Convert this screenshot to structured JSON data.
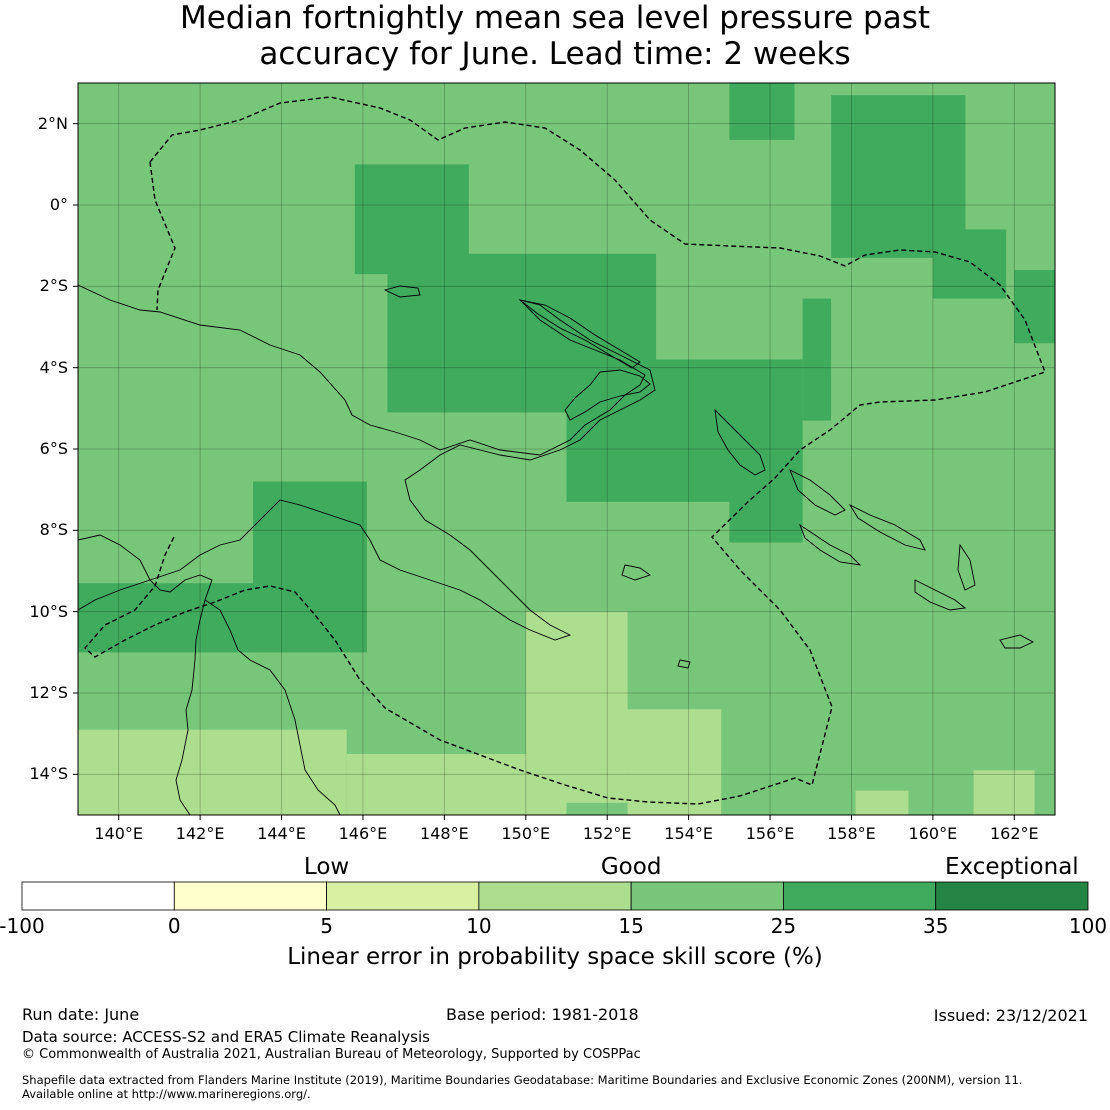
{
  "title": {
    "line1": "Median fortnightly mean sea level pressure past",
    "line2": "accuracy for June. Lead time: 2 weeks"
  },
  "map": {
    "lon_range": [
      139,
      163
    ],
    "lat_range": [
      -15,
      3
    ],
    "lat_labels": [
      "2°N",
      "0°",
      "2°S",
      "4°S",
      "6°S",
      "8°S",
      "10°S",
      "12°S",
      "14°S"
    ],
    "lat_values": [
      2,
      0,
      -2,
      -4,
      -6,
      -8,
      -10,
      -12,
      -14
    ],
    "lon_labels": [
      "140°E",
      "142°E",
      "144°E",
      "146°E",
      "148°E",
      "150°E",
      "152°E",
      "154°E",
      "156°E",
      "158°E",
      "160°E",
      "162°E"
    ],
    "lon_values": [
      140,
      142,
      144,
      146,
      148,
      150,
      152,
      154,
      156,
      158,
      160,
      162
    ],
    "grid": "on",
    "default_category": 4,
    "regions": [
      {
        "category": 5,
        "lon": [
          145.8,
          148.6
        ],
        "lat": [
          -1.7,
          1.0
        ]
      },
      {
        "category": 5,
        "lon": [
          146.6,
          153.2
        ],
        "lat": [
          -5.1,
          -1.2
        ]
      },
      {
        "category": 5,
        "lon": [
          151.0,
          156.8
        ],
        "lat": [
          -7.3,
          -3.8
        ]
      },
      {
        "category": 5,
        "lon": [
          155.0,
          156.8
        ],
        "lat": [
          -8.3,
          -6.0
        ]
      },
      {
        "category": 5,
        "lon": [
          156.8,
          157.5
        ],
        "lat": [
          -5.3,
          -2.3
        ]
      },
      {
        "category": 5,
        "lon": [
          157.5,
          160.8
        ],
        "lat": [
          -1.3,
          2.7
        ]
      },
      {
        "category": 5,
        "lon": [
          160.0,
          161.8
        ],
        "lat": [
          -2.3,
          -0.6
        ]
      },
      {
        "category": 5,
        "lon": [
          162.0,
          163.0
        ],
        "lat": [
          -3.4,
          -1.6
        ]
      },
      {
        "category": 5,
        "lon": [
          155.0,
          156.6
        ],
        "lat": [
          1.6,
          3.0
        ]
      },
      {
        "category": 5,
        "lon": [
          139.0,
          144.0
        ],
        "lat": [
          -11.0,
          -9.3
        ]
      },
      {
        "category": 5,
        "lon": [
          143.3,
          146.1
        ],
        "lat": [
          -11.0,
          -6.8
        ]
      },
      {
        "category": 3,
        "lon": [
          139.0,
          145.6
        ],
        "lat": [
          -15.0,
          -12.9
        ]
      },
      {
        "category": 3,
        "lon": [
          145.6,
          151.0
        ],
        "lat": [
          -15.0,
          -13.5
        ]
      },
      {
        "category": 3,
        "lon": [
          150.0,
          152.5
        ],
        "lat": [
          -14.7,
          -10.0
        ]
      },
      {
        "category": 3,
        "lon": [
          152.5,
          154.8
        ],
        "lat": [
          -15.0,
          -12.4
        ]
      },
      {
        "category": 3,
        "lon": [
          158.1,
          159.4
        ],
        "lat": [
          -15.0,
          -14.4
        ]
      },
      {
        "category": 3,
        "lon": [
          161.0,
          162.5
        ],
        "lat": [
          -15.0,
          -13.9
        ]
      }
    ]
  },
  "colorbar": {
    "categories": [
      {
        "label": "Low",
        "from_tick": 1,
        "to_tick": 3
      },
      {
        "label": "Good",
        "from_tick": 3,
        "to_tick": 5
      },
      {
        "label": "Exceptional",
        "from_tick": 6,
        "to_tick": 7
      }
    ],
    "ticks": [
      "-100",
      "0",
      "5",
      "10",
      "15",
      "25",
      "35",
      "100"
    ],
    "colors": [
      "#ffffff",
      "#ffffcc",
      "#d9f0a3",
      "#addd8e",
      "#78c679",
      "#41ab5d",
      "#238443"
    ],
    "title": "Linear error in probability space skill score (%)"
  },
  "footer": {
    "run_date": "Run date: June",
    "base_period": "Base period: 1981-2018",
    "issued": "Issued: 23/12/2021",
    "data_source": "Data source: ACCESS-S2 and ERA5 Climate Reanalysis",
    "copyright": "© Commonwealth of Australia 2021, Australian Bureau of Meteorology, Supported by COSPPac",
    "shapefile_line1": "Shapefile data extracted from Flanders Marine Institute (2019), Maritime Boundaries Geodatabase: Maritime Boundaries and Exclusive Economic Zones (200NM), version 11.",
    "shapefile_line2": "Available online at http://www.marineregions.org/."
  }
}
